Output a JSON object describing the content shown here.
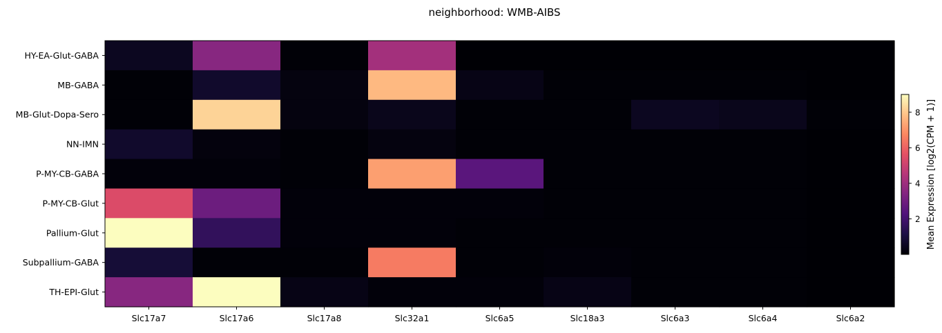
{
  "chart_data": {
    "type": "heatmap",
    "title": "neighborhood: WMB-AIBS",
    "x_categories": [
      "Slc17a7",
      "Slc17a6",
      "Slc17a8",
      "Slc32a1",
      "Slc6a5",
      "Slc18a3",
      "Slc6a3",
      "Slc6a4",
      "Slc6a2"
    ],
    "y_categories": [
      "HY-EA-Glut-GABA",
      "MB-GABA",
      "MB-Glut-Dopa-Sero",
      "NN-IMN",
      "P-MY-CB-GABA",
      "P-MY-CB-Glut",
      "Pallium-Glut",
      "Subpallium-GABA",
      "TH-EPI-Glut"
    ],
    "values": [
      [
        0.5,
        3.5,
        0.05,
        4.1,
        0.02,
        0.02,
        0.02,
        0.02,
        0.02
      ],
      [
        0.05,
        0.7,
        0.2,
        7.7,
        0.3,
        0.05,
        0.05,
        0.05,
        0.02
      ],
      [
        0.05,
        8.2,
        0.2,
        0.4,
        0.05,
        0.05,
        0.5,
        0.4,
        0.05
      ],
      [
        0.7,
        0.15,
        0.05,
        0.2,
        0.05,
        0.05,
        0.05,
        0.05,
        0.02
      ],
      [
        0.1,
        0.1,
        0.05,
        7.2,
        2.5,
        0.05,
        0.05,
        0.05,
        0.02
      ],
      [
        5.4,
        2.9,
        0.1,
        0.1,
        0.1,
        0.05,
        0.05,
        0.05,
        0.02
      ],
      [
        9.0,
        1.6,
        0.1,
        0.1,
        0.05,
        0.05,
        0.05,
        0.05,
        0.02
      ],
      [
        0.9,
        0.05,
        0.05,
        6.5,
        0.05,
        0.1,
        0.05,
        0.05,
        0.02
      ],
      [
        3.5,
        9.0,
        0.3,
        0.1,
        0.1,
        0.3,
        0.05,
        0.05,
        0.02
      ]
    ],
    "colormap": "magma",
    "vmin": 0,
    "vmax": 9,
    "colorbar": {
      "label": "Mean Expression [log2(CPM + 1)]",
      "ticks": [
        2,
        4,
        6,
        8
      ],
      "placement": "right"
    }
  }
}
